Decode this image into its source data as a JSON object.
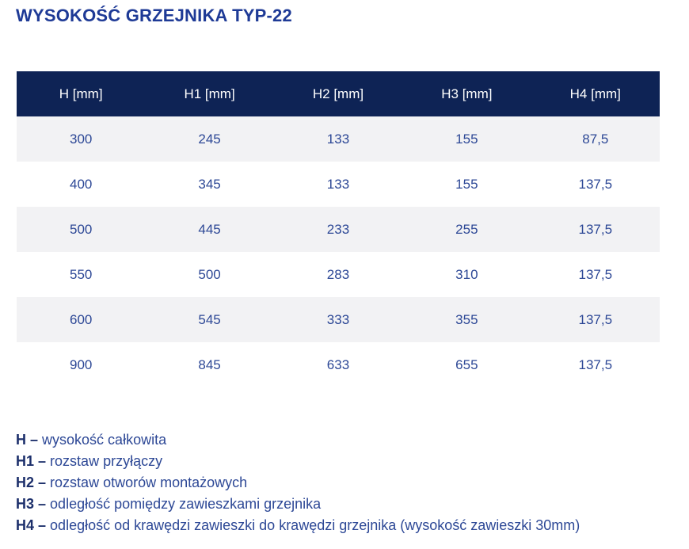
{
  "title": "WYSOKOŚĆ GRZEJNIKA TYP-22",
  "table": {
    "headers": [
      "H [mm]",
      "H1 [mm]",
      "H2 [mm]",
      "H3 [mm]",
      "H4 [mm]"
    ],
    "rows": [
      [
        "300",
        "245",
        "133",
        "155",
        "87,5"
      ],
      [
        "400",
        "345",
        "133",
        "155",
        "137,5"
      ],
      [
        "500",
        "445",
        "233",
        "255",
        "137,5"
      ],
      [
        "550",
        "500",
        "283",
        "310",
        "137,5"
      ],
      [
        "600",
        "545",
        "333",
        "355",
        "137,5"
      ],
      [
        "900",
        "845",
        "633",
        "655",
        "137,5"
      ]
    ]
  },
  "legend": [
    {
      "term": "H –",
      "definition": "wysokość całkowita"
    },
    {
      "term": "H1 –",
      "definition": "rozstaw przyłączy"
    },
    {
      "term": "H2 –",
      "definition": "rozstaw otworów montażowych"
    },
    {
      "term": "H3 –",
      "definition": "odległość pomiędzy zawieszkami grzejnika"
    },
    {
      "term": "H4 –",
      "definition": "odległość od krawędzi zawieszki do krawędzi grzejnika (wysokość zawieszki 30mm)"
    }
  ],
  "colors": {
    "header_bg": "#0e2355",
    "header_text": "#ffffff",
    "row_alt_bg": "#f2f2f4",
    "row_bg": "#ffffff",
    "data_text": "#2d4896",
    "title_text": "#1e3a96",
    "legend_term": "#1c2f6b",
    "legend_text": "#2d4896"
  }
}
